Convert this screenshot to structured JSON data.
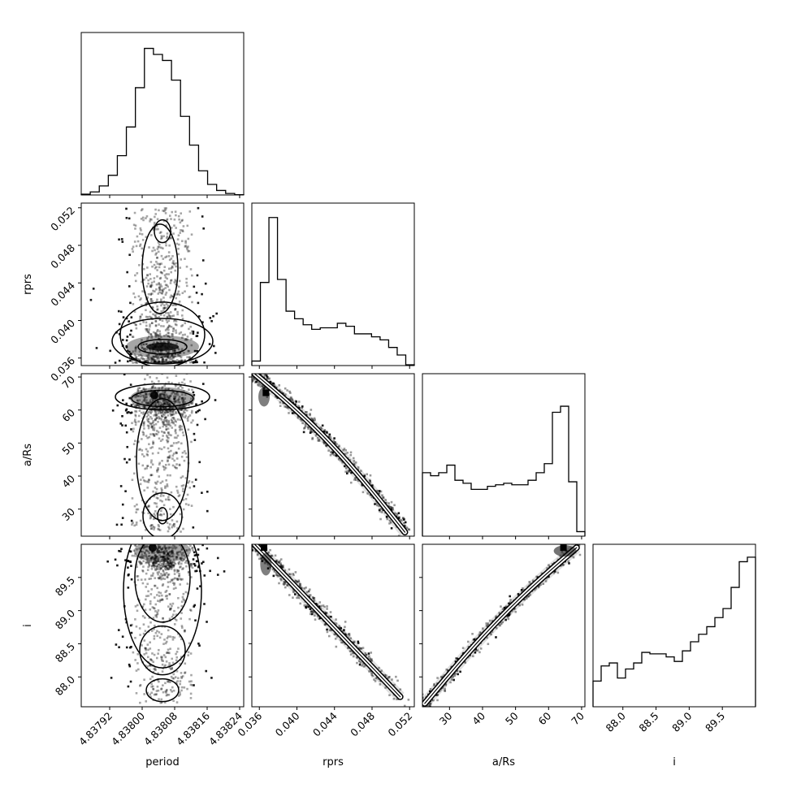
{
  "chart_data": {
    "type": "corner",
    "parameters": [
      "period",
      "rprs",
      "a/Rs",
      "i"
    ],
    "axis_labels": {
      "x": [
        "period",
        "rprs",
        "a/Rs",
        "i"
      ],
      "y": [
        "",
        "rprs",
        "a/Rs",
        "i"
      ]
    },
    "ranges": [
      [
        4.83785,
        4.83825
      ],
      [
        0.0352,
        0.0525
      ],
      [
        21.8,
        71.0
      ],
      [
        87.55,
        90.0
      ]
    ],
    "ticks": [
      {
        "values": [
          4.83792,
          4.838,
          4.83808,
          4.83816,
          4.83824
        ],
        "labels": [
          "4.83792",
          "4.83800",
          "4.83808",
          "4.83816",
          "4.83824"
        ]
      },
      {
        "values": [
          0.036,
          0.04,
          0.044,
          0.048,
          0.052
        ],
        "labels": [
          "0.036",
          "0.040",
          "0.044",
          "0.048",
          "0.052"
        ]
      },
      {
        "values": [
          30,
          40,
          50,
          60,
          70
        ],
        "labels": [
          "30",
          "40",
          "50",
          "60",
          "70"
        ]
      },
      {
        "values": [
          88.0,
          88.5,
          89.0,
          89.5
        ],
        "labels": [
          "88.0",
          "88.5",
          "89.0",
          "89.5"
        ]
      }
    ],
    "histograms": [
      {
        "parameter": "period",
        "counts": [
          0.005,
          0.02,
          0.06,
          0.13,
          0.26,
          0.45,
          0.71,
          0.97,
          0.93,
          0.89,
          0.76,
          0.52,
          0.33,
          0.16,
          0.07,
          0.03,
          0.01,
          0.002
        ]
      },
      {
        "parameter": "rprs",
        "counts": [
          0.03,
          0.55,
          0.98,
          0.57,
          0.36,
          0.31,
          0.27,
          0.24,
          0.25,
          0.25,
          0.28,
          0.26,
          0.21,
          0.21,
          0.19,
          0.17,
          0.12,
          0.07,
          0.005
        ]
      },
      {
        "parameter": "a/Rs",
        "counts": [
          0.42,
          0.4,
          0.42,
          0.47,
          0.37,
          0.35,
          0.31,
          0.31,
          0.33,
          0.34,
          0.35,
          0.34,
          0.34,
          0.37,
          0.42,
          0.48,
          0.82,
          0.86,
          0.36,
          0.03
        ]
      },
      {
        "parameter": "i",
        "counts": [
          0.17,
          0.27,
          0.29,
          0.19,
          0.25,
          0.29,
          0.36,
          0.35,
          0.35,
          0.33,
          0.3,
          0.37,
          0.43,
          0.48,
          0.53,
          0.59,
          0.65,
          0.79,
          0.96,
          0.99
        ]
      }
    ],
    "pair_relations": [
      {
        "x": "period",
        "y": "rprs",
        "structure": "vertical band, dense core near rprs 0.037"
      },
      {
        "x": "period",
        "y": "a/Rs",
        "structure": "vertical band, dense core near a/Rs 64"
      },
      {
        "x": "rprs",
        "y": "a/Rs",
        "structure": "negative correlation, curved"
      },
      {
        "x": "period",
        "y": "i",
        "structure": "vertical band, dense core near i 89.9"
      },
      {
        "x": "rprs",
        "y": "i",
        "structure": "negative correlation"
      },
      {
        "x": "a/Rs",
        "y": "i",
        "structure": "positive correlation, curved"
      }
    ],
    "grid": false,
    "legend": "none"
  }
}
